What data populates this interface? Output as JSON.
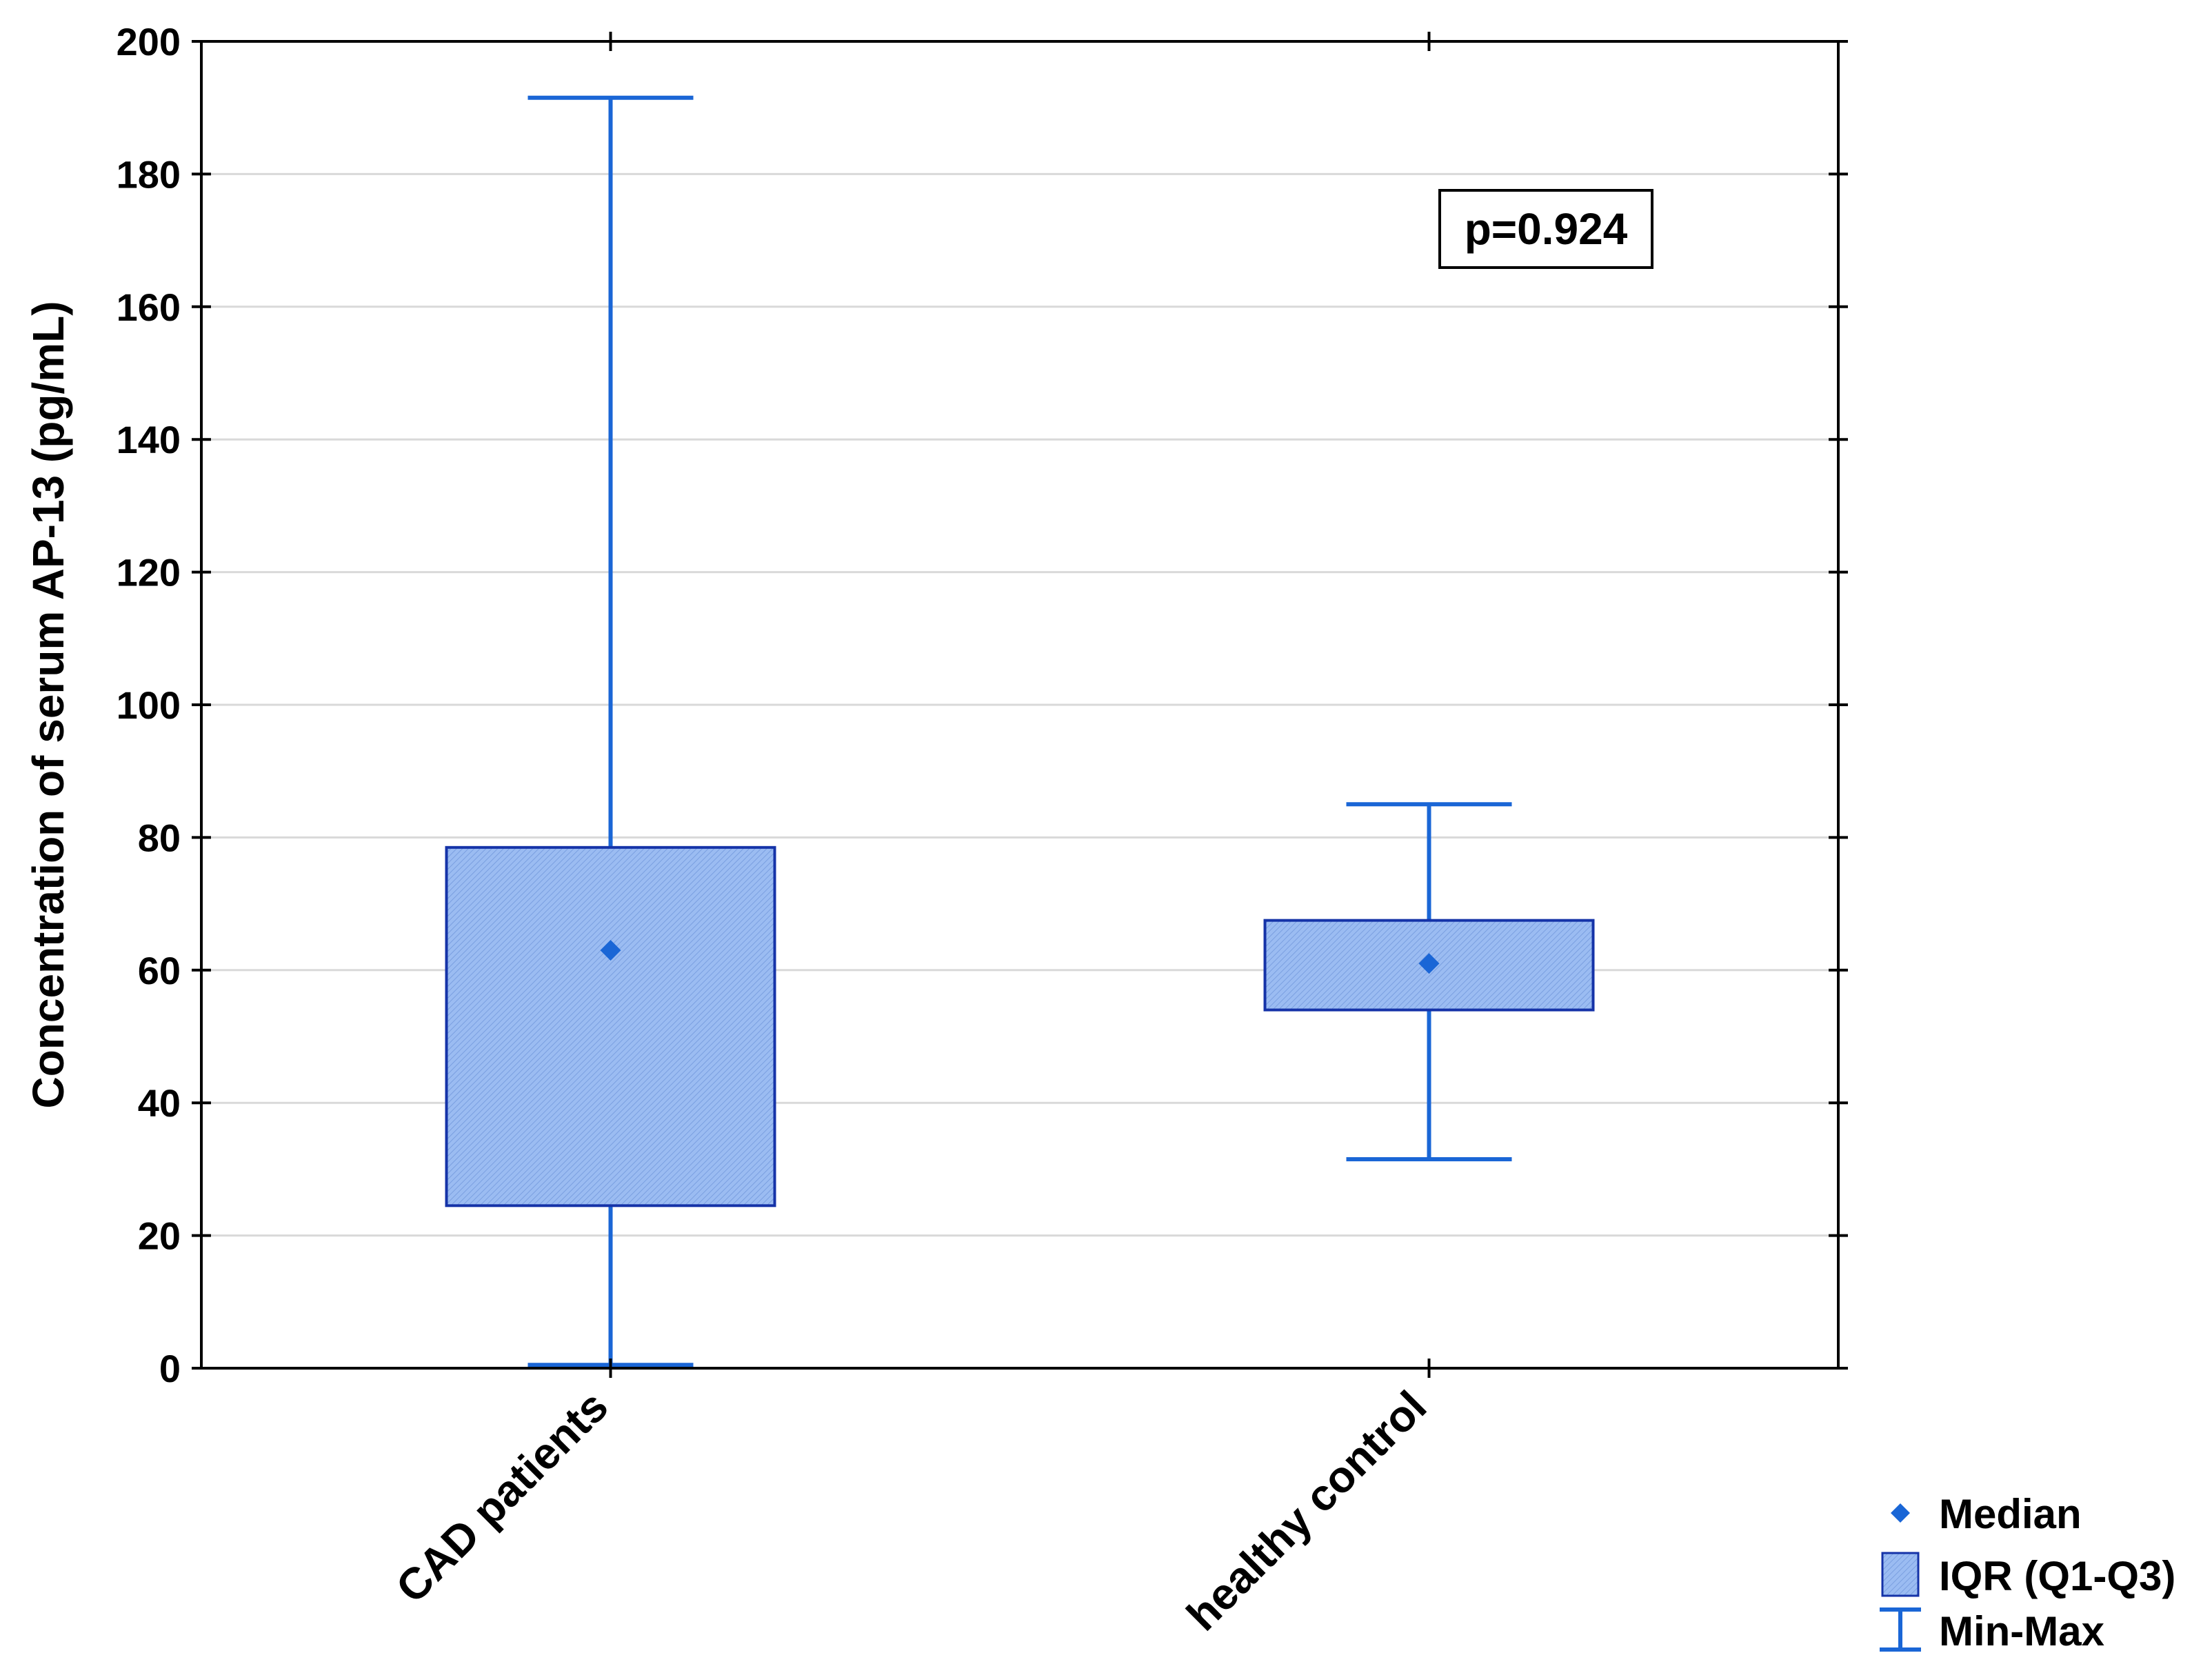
{
  "chart_data": {
    "type": "box",
    "title": "",
    "xlabel": "",
    "ylabel": "Concentration of serum AP-13 (pg/mL)",
    "ylim": [
      0,
      200
    ],
    "yticks": [
      0,
      20,
      40,
      60,
      80,
      100,
      120,
      140,
      160,
      180,
      200
    ],
    "grid": true,
    "categories": [
      "CAD patients",
      "healthy control"
    ],
    "groups": [
      {
        "name": "CAD patients",
        "min": 0.5,
        "q1": 24.5,
        "median": 63,
        "q3": 78.5,
        "max": 191.5
      },
      {
        "name": "healthy control",
        "min": 31.5,
        "q1": 54,
        "median": 61,
        "q3": 67.5,
        "max": 85
      }
    ],
    "annotation": "p=0.924",
    "legend": {
      "placement": "bottom-right",
      "items": [
        {
          "label": "Median",
          "marker": "diamond"
        },
        {
          "label": "IQR (Q1-Q3)",
          "marker": "box"
        },
        {
          "label": "Min-Max",
          "marker": "whisker"
        }
      ]
    },
    "colors": {
      "box_fill": "#9bbcf2",
      "box_edge": "#1533a8",
      "whisker": "#1a66d6",
      "median": "#1a66d6",
      "grid": "#d9d9d9",
      "axis": "#000000"
    }
  }
}
